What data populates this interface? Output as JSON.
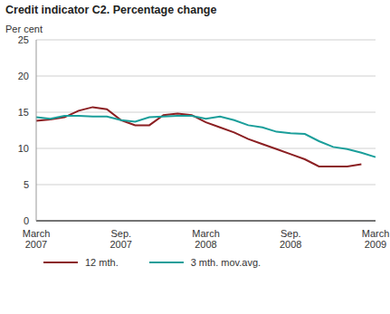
{
  "chart_data": {
    "type": "line",
    "title": "Credit indicator C2. Percentage change",
    "y_label": "Per cent",
    "categories": [
      "March 2007",
      null,
      null,
      null,
      null,
      null,
      "Sep. 2007",
      null,
      null,
      null,
      null,
      null,
      "March 2008",
      null,
      null,
      null,
      null,
      null,
      "Sep. 2008",
      null,
      null,
      null,
      null,
      null,
      "March 2009"
    ],
    "series": [
      {
        "name": "12 mth.",
        "color": "#8b1f22",
        "values": [
          13.8,
          14.0,
          14.3,
          15.2,
          15.7,
          15.4,
          13.9,
          13.2,
          13.2,
          14.6,
          14.8,
          14.6,
          13.6,
          12.9,
          12.2,
          11.3,
          10.6,
          9.9,
          9.2,
          8.5,
          7.5,
          7.5,
          7.5,
          7.8,
          null
        ]
      },
      {
        "name": "3 mth. mov.avg.",
        "color": "#1a9e9a",
        "values": [
          14.3,
          14.1,
          14.5,
          14.5,
          14.4,
          14.4,
          13.9,
          13.7,
          14.3,
          14.4,
          14.5,
          14.5,
          14.1,
          14.4,
          13.9,
          13.2,
          12.9,
          12.3,
          12.1,
          12.0,
          11.0,
          10.2,
          9.9,
          9.4,
          8.8
        ]
      }
    ],
    "ylim": [
      0,
      25
    ],
    "yticks": [
      0,
      5,
      10,
      15,
      20,
      25
    ],
    "grid": true,
    "legend": "bottom"
  }
}
